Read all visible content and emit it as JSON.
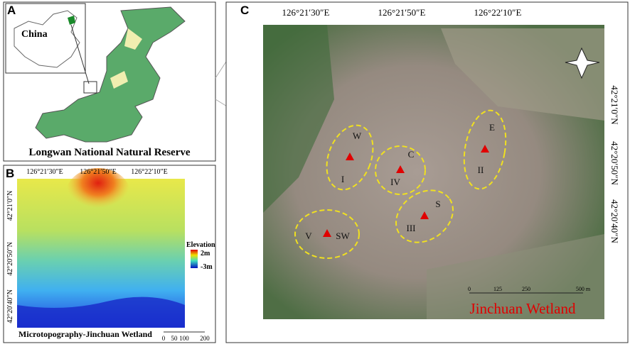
{
  "panel_a": {
    "label": "A",
    "inset_label": "China",
    "caption": "Longwan National Natural Reserve"
  },
  "panel_b": {
    "label": "B",
    "x_coords": [
      "126°21′30″E",
      "126°21′50″E",
      "126°22′10″E"
    ],
    "y_coords": [
      "42°21′0″N",
      "42°20′50″N",
      "42°20′40″N"
    ],
    "legend_title": "Elevation",
    "legend_max": "2m",
    "legend_min": "-3m",
    "caption": "Microtopography-Jinchuan Wetland",
    "scale": [
      "0",
      "50",
      "100",
      "200"
    ]
  },
  "panel_c": {
    "label": "C",
    "x_coords": [
      "126°21′30″E",
      "126°21′50″E",
      "126°22′10″E"
    ],
    "y_coords": [
      "42°21′0″N",
      "42°20′50″N",
      "42°20′40″N"
    ],
    "sites": [
      {
        "direction": "W",
        "number": "I"
      },
      {
        "direction": "C",
        "number": "IV"
      },
      {
        "direction": "E",
        "number": "II"
      },
      {
        "direction": "S",
        "number": "III"
      },
      {
        "direction": "SW",
        "number": "V"
      }
    ],
    "scale": [
      "0",
      "125",
      "250",
      "500 m"
    ],
    "caption": "Jinchuan Wetland"
  }
}
